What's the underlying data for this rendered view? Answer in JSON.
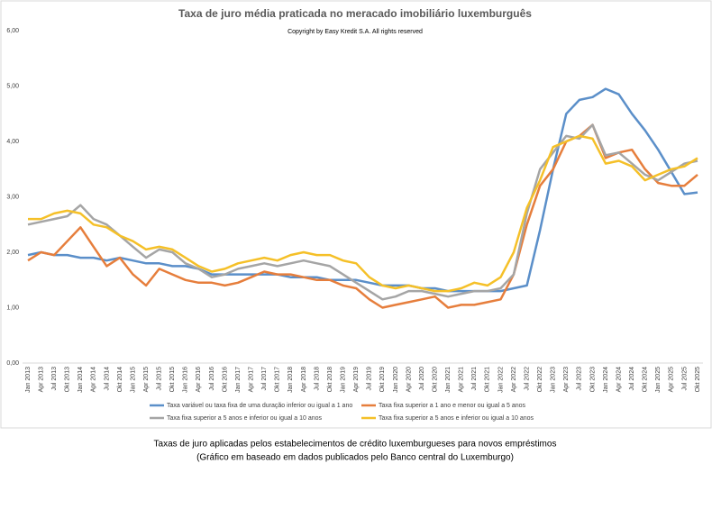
{
  "chart_data": {
    "type": "line",
    "title": "Taxa de juro média praticada no meracado imobiliário luxemburguês",
    "subtitle": "Copyright by Easy Kredit S.A. All rights reserved",
    "caption": [
      "Taxas de juro aplicadas pelos estabelecimentos de crédito luxemburgueses para novos empréstimos",
      "(Gráfico em baseado em dados publicados pelo Banco central do Luxemburgo)"
    ],
    "categories": [
      "Jan 2013",
      "Apr 2013",
      "Jul 2013",
      "Okt 2013",
      "Jan 2014",
      "Apr 2014",
      "Jul 2014",
      "Okt 2014",
      "Jan 2015",
      "Apr 2015",
      "Jul 2015",
      "Okt 2015",
      "Jan 2016",
      "Apr 2016",
      "Jul 2016",
      "Okt 2016",
      "Jan 2017",
      "Apr 2017",
      "Jul 2017",
      "Okt 2017",
      "Jan 2018",
      "Apr 2018",
      "Jul 2018",
      "Okt 2018",
      "Jan 2019",
      "Apr 2019",
      "Jul 2019",
      "Okt 2019",
      "Jan 2020",
      "Apr 2020",
      "Jul 2020",
      "Okt 2020",
      "Jan 2021",
      "Apr 2021",
      "Jul 2021",
      "Okt 2021",
      "Jan 2022",
      "Apr 2022",
      "Jul 2022",
      "Okt 2022",
      "Jan 2023",
      "Apr 2023",
      "Jul 2023",
      "Okt 2023",
      "Jan 2024",
      "Apr 2024",
      "Jul 2024",
      "Okt 2024",
      "Jan 2025",
      "Apr 2025",
      "Jul 2025",
      "Okt 2025"
    ],
    "series": [
      {
        "name": "Taxa variável ou taxa fixa de uma duração inferior ou igual a 1 ano",
        "color": "#5b8fc9",
        "values": [
          1.95,
          2.0,
          1.95,
          1.95,
          1.9,
          1.9,
          1.85,
          1.9,
          1.85,
          1.8,
          1.8,
          1.75,
          1.75,
          1.7,
          1.6,
          1.6,
          1.6,
          1.6,
          1.6,
          1.6,
          1.55,
          1.55,
          1.55,
          1.5,
          1.5,
          1.5,
          1.45,
          1.4,
          1.4,
          1.4,
          1.35,
          1.35,
          1.3,
          1.3,
          1.3,
          1.3,
          1.3,
          1.35,
          1.4,
          2.4,
          3.5,
          4.5,
          4.75,
          4.8,
          4.95,
          4.85,
          4.5,
          4.2,
          3.85,
          3.45,
          3.05,
          3.08
        ]
      },
      {
        "name": "Taxa fixa superior a 1 ano e menor ou igual a 5 anos",
        "color": "#e67e3c",
        "values": [
          1.85,
          2.0,
          1.95,
          2.2,
          2.45,
          2.1,
          1.75,
          1.9,
          1.6,
          1.4,
          1.7,
          1.6,
          1.5,
          1.45,
          1.45,
          1.4,
          1.45,
          1.55,
          1.65,
          1.6,
          1.6,
          1.55,
          1.5,
          1.5,
          1.4,
          1.35,
          1.15,
          1.0,
          1.05,
          1.1,
          1.15,
          1.2,
          1.0,
          1.05,
          1.05,
          1.1,
          1.15,
          1.6,
          2.5,
          3.2,
          3.5,
          4.0,
          4.1,
          4.3,
          3.7,
          3.8,
          3.85,
          3.5,
          3.25,
          3.2,
          3.2,
          3.4
        ]
      },
      {
        "name": "Taxa fixa superior a 5 anos e inferior ou igual a 10 anos",
        "color": "#a5a5a5",
        "values": [
          2.5,
          2.55,
          2.6,
          2.65,
          2.85,
          2.6,
          2.5,
          2.3,
          2.1,
          1.9,
          2.05,
          2.0,
          1.8,
          1.7,
          1.55,
          1.6,
          1.7,
          1.75,
          1.8,
          1.75,
          1.8,
          1.85,
          1.8,
          1.75,
          1.6,
          1.45,
          1.3,
          1.15,
          1.2,
          1.3,
          1.3,
          1.25,
          1.2,
          1.25,
          1.3,
          1.3,
          1.35,
          1.6,
          2.7,
          3.5,
          3.8,
          4.1,
          4.05,
          4.3,
          3.75,
          3.8,
          3.6,
          3.4,
          3.3,
          3.45,
          3.6,
          3.65
        ]
      },
      {
        "name": "Taxa fixa superior a 5 anos e inferior ou igual a 10 anos",
        "color": "#f5c028",
        "values": [
          2.6,
          2.6,
          2.7,
          2.75,
          2.7,
          2.5,
          2.45,
          2.3,
          2.2,
          2.05,
          2.1,
          2.05,
          1.9,
          1.75,
          1.65,
          1.7,
          1.8,
          1.85,
          1.9,
          1.85,
          1.95,
          2.0,
          1.95,
          1.95,
          1.85,
          1.8,
          1.55,
          1.4,
          1.35,
          1.4,
          1.35,
          1.3,
          1.3,
          1.35,
          1.45,
          1.4,
          1.55,
          2.0,
          2.8,
          3.3,
          3.9,
          4.0,
          4.1,
          4.05,
          3.6,
          3.65,
          3.55,
          3.3,
          3.4,
          3.5,
          3.55,
          3.7
        ]
      }
    ],
    "ylim": [
      0,
      6
    ],
    "yticks": [
      {
        "value": 0,
        "label": "0,00"
      },
      {
        "value": 1,
        "label": "1,00"
      },
      {
        "value": 2,
        "label": "2,00"
      },
      {
        "value": 3,
        "label": "3,00"
      },
      {
        "value": 4,
        "label": "4,00"
      },
      {
        "value": 5,
        "label": "5,00"
      },
      {
        "value": 6,
        "label": "6,00"
      }
    ],
    "grid": false
  }
}
